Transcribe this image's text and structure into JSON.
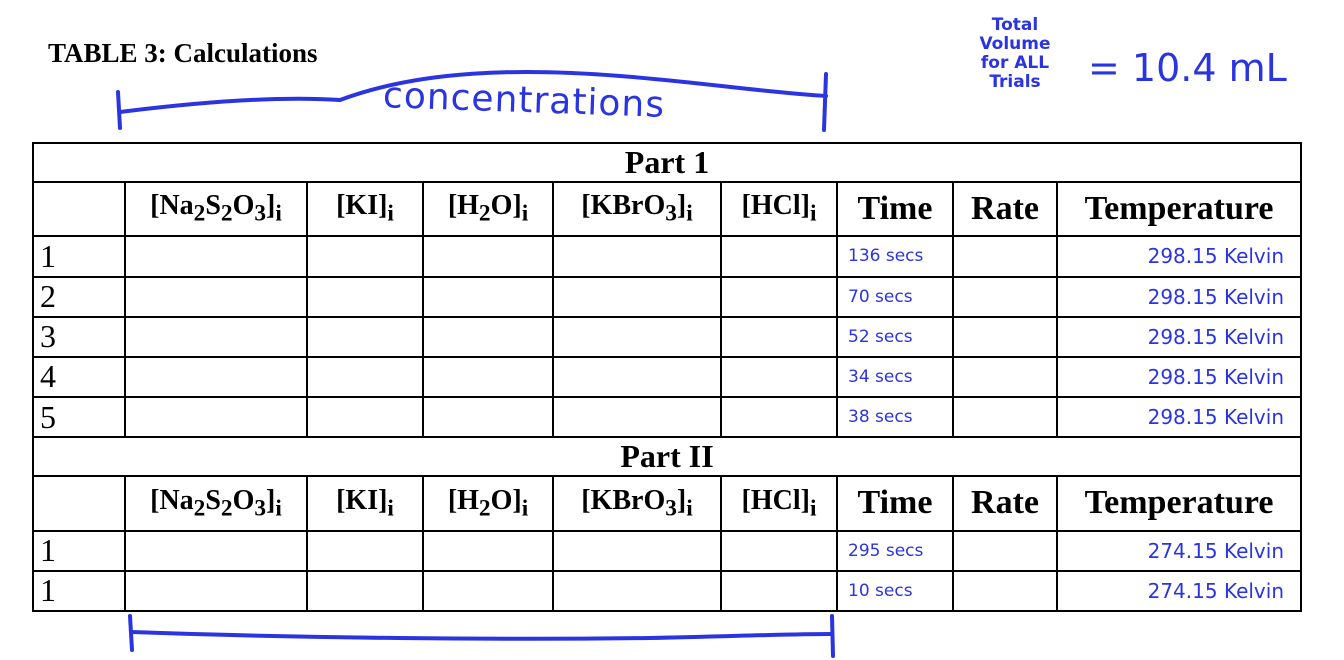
{
  "title": "TABLE 3: Calculations",
  "annotations": {
    "concentrations": "concentrations",
    "total_label_lines": [
      "Total",
      "Volume",
      "for ALL",
      "Trials"
    ],
    "total_value": "= 10.4 mL",
    "ink_color": "#2a34e0"
  },
  "table": {
    "columns_html": [
      "",
      "[Na<sub>2</sub>S<sub>2</sub>O<sub>3</sub>]<sub>i</sub>",
      "[KI]<sub>i</sub>",
      "[H<sub>2</sub>O]<sub>i</sub>",
      "[KBrO<sub>3</sub>]<sub>i</sub>",
      "[HCl]<sub>i</sub>",
      "Time",
      "Rate",
      "Temperature"
    ],
    "sections": [
      {
        "title": "Part 1",
        "rows": [
          {
            "trial": "1",
            "time": "136 secs",
            "temperature": "298.15 Kelvin"
          },
          {
            "trial": "2",
            "time": "70 secs",
            "temperature": "298.15 Kelvin"
          },
          {
            "trial": "3",
            "time": "52 secs",
            "temperature": "298.15 Kelvin"
          },
          {
            "trial": "4",
            "time": "34 secs",
            "temperature": "298.15 Kelvin"
          },
          {
            "trial": "5",
            "time": "38 secs",
            "temperature": "298.15 Kelvin"
          }
        ]
      },
      {
        "title": "Part II",
        "rows": [
          {
            "trial": "1",
            "time": "295 secs",
            "temperature": "274.15 Kelvin"
          },
          {
            "trial": "1",
            "time": "10 secs",
            "temperature": "274.15 Kelvin"
          }
        ]
      }
    ]
  }
}
